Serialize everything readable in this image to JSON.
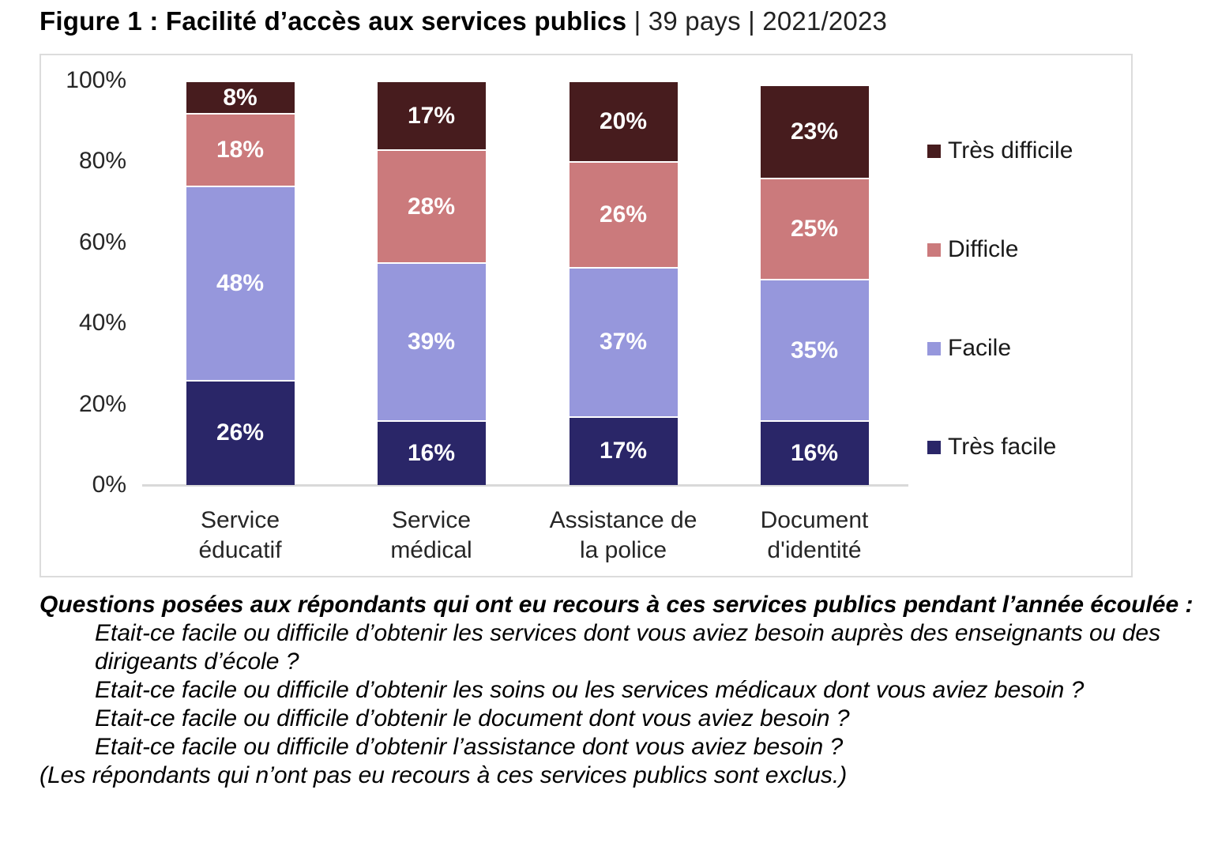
{
  "title": {
    "bold": "Figure 1 : Facilité d’accès aux services publics",
    "regular": " | 39 pays | 2021/2023"
  },
  "chart_data": {
    "type": "bar",
    "stacked": true,
    "title": "Figure 1 : Facilité d’accès aux services publics | 39 pays | 2021/2023",
    "categories": [
      "Service\néducatif",
      "Service\nmédical",
      "Assistance de\nla police",
      "Document\nd'identité"
    ],
    "series": [
      {
        "name": "Très facile",
        "color": "#2A2668",
        "values": [
          26,
          16,
          17,
          16
        ]
      },
      {
        "name": "Facile",
        "color": "#9697DC",
        "values": [
          48,
          39,
          37,
          35
        ]
      },
      {
        "name": "Difficle",
        "color": "#CB7A7C",
        "values": [
          18,
          28,
          26,
          25
        ]
      },
      {
        "name": "Très difficile",
        "color": "#471C1E",
        "values": [
          8,
          17,
          20,
          23
        ]
      }
    ],
    "value_suffix": "%",
    "y_ticks": [
      "100%",
      "80%",
      "60%",
      "40%",
      "20%",
      "0%"
    ],
    "ylim": [
      0,
      100
    ],
    "grid": false,
    "legend_position": "right",
    "legend_series_order": [
      3,
      2,
      1,
      0
    ]
  },
  "footnote": {
    "heading": "Questions posées aux répondants qui ont eu recours à ces services publics pendant l’année écoulée :",
    "questions": [
      "Etait-ce facile ou difficile d’obtenir les services dont vous aviez besoin auprès des enseignants ou des dirigeants d’école ?",
      "Etait-ce facile ou difficile d’obtenir les soins ou les services médicaux dont vous aviez besoin ?",
      "Etait-ce facile ou difficile d’obtenir le document dont vous aviez besoin ?",
      "Etait-ce facile ou difficile d’obtenir l’assistance dont vous aviez besoin ?"
    ],
    "exclusion": "(Les répondants qui n’ont pas eu recours à ces services publics sont exclus.)"
  }
}
